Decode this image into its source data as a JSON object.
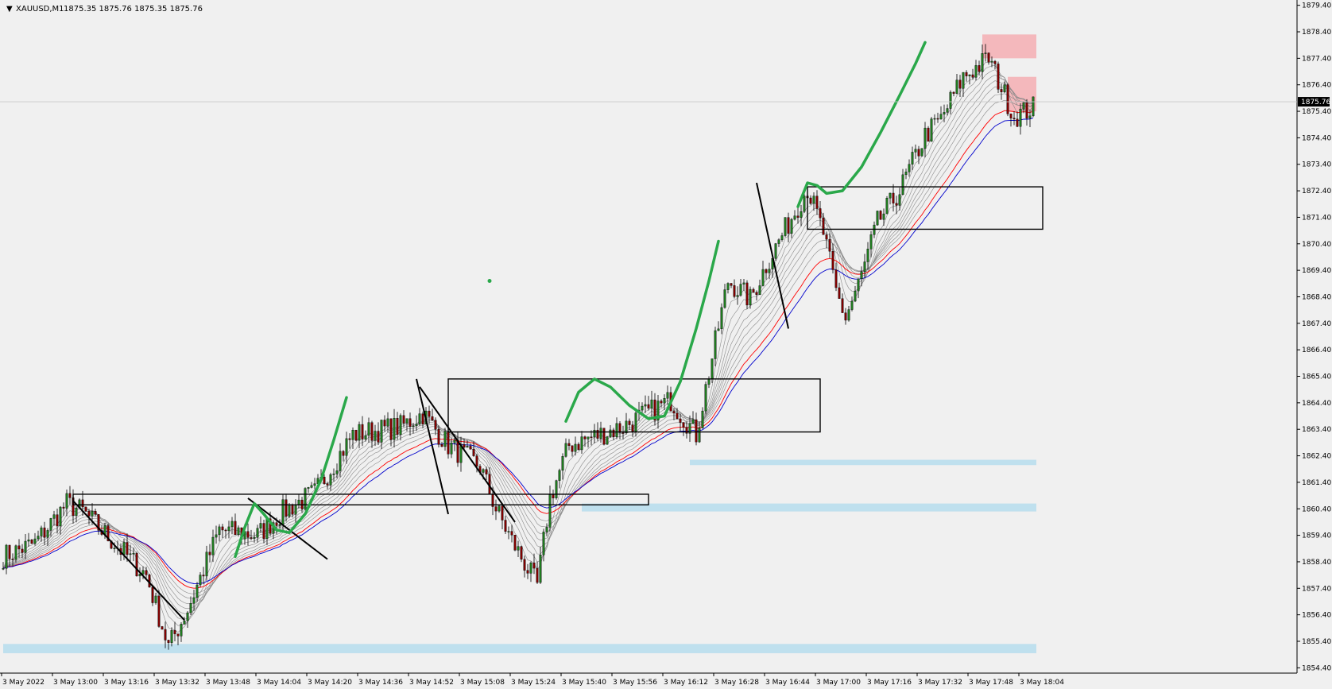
{
  "header": {
    "symbol": "XAUUSD,M1",
    "ohlc": "1875.35 1875.76 1875.35 1875.76"
  },
  "chart_data": {
    "type": "candlestick",
    "symbol": "XAUUSD,M1",
    "ylim": [
      1854.2,
      1879.6
    ],
    "y_ticks": [
      "1879.40",
      "1878.40",
      "1877.40",
      "1876.40",
      "1875.40",
      "1874.40",
      "1873.40",
      "1872.40",
      "1871.40",
      "1870.40",
      "1869.40",
      "1868.40",
      "1867.40",
      "1866.40",
      "1865.40",
      "1864.40",
      "1863.40",
      "1862.40",
      "1861.40",
      "1860.40",
      "1859.40",
      "1858.40",
      "1857.40",
      "1856.40",
      "1855.40",
      "1854.40"
    ],
    "y_tick_values": [
      1879.4,
      1878.4,
      1877.4,
      1876.4,
      1875.4,
      1874.4,
      1873.4,
      1872.4,
      1871.4,
      1870.4,
      1869.4,
      1868.4,
      1867.4,
      1866.4,
      1865.4,
      1864.4,
      1863.4,
      1862.4,
      1861.4,
      1860.4,
      1859.4,
      1858.4,
      1857.4,
      1856.4,
      1855.4,
      1854.4
    ],
    "x_ticks": [
      "3 May 2022",
      "3 May 13:00",
      "3 May 13:16",
      "3 May 13:32",
      "3 May 13:48",
      "3 May 14:04",
      "3 May 14:20",
      "3 May 14:36",
      "3 May 14:52",
      "3 May 15:08",
      "3 May 15:24",
      "3 May 15:40",
      "3 May 15:56",
      "3 May 16:12",
      "3 May 16:28",
      "3 May 16:44",
      "3 May 17:00",
      "3 May 17:16",
      "3 May 17:32",
      "3 May 17:48",
      "3 May 18:04"
    ],
    "current_price": "1875.76",
    "bar_count": 325,
    "price_path": [
      [
        0,
        1858.6
      ],
      [
        10,
        1859.1
      ],
      [
        20,
        1860.6
      ],
      [
        25,
        1860.3
      ],
      [
        45,
        1857.9
      ],
      [
        52,
        1855.2
      ],
      [
        58,
        1856.6
      ],
      [
        68,
        1859.6
      ],
      [
        80,
        1859.4
      ],
      [
        88,
        1860.3
      ],
      [
        98,
        1861.0
      ],
      [
        110,
        1863.2
      ],
      [
        125,
        1863.5
      ],
      [
        132,
        1864.0
      ],
      [
        140,
        1862.8
      ],
      [
        150,
        1862.0
      ],
      [
        155,
        1860.4
      ],
      [
        160,
        1859.2
      ],
      [
        168,
        1857.5
      ],
      [
        172,
        1860.8
      ],
      [
        178,
        1862.8
      ],
      [
        185,
        1863.1
      ],
      [
        195,
        1863.5
      ],
      [
        210,
        1864.5
      ],
      [
        218,
        1863.2
      ],
      [
        228,
        1869.0
      ],
      [
        235,
        1868.3
      ],
      [
        240,
        1869.6
      ],
      [
        248,
        1871.4
      ],
      [
        253,
        1872.5
      ],
      [
        258,
        1870.8
      ],
      [
        262,
        1868.6
      ],
      [
        265,
        1867.6
      ],
      [
        270,
        1869.2
      ],
      [
        275,
        1871.2
      ],
      [
        282,
        1872.4
      ],
      [
        290,
        1874.5
      ],
      [
        295,
        1875.1
      ],
      [
        302,
        1876.7
      ],
      [
        310,
        1877.4
      ],
      [
        318,
        1875.2
      ],
      [
        325,
        1875.6
      ]
    ],
    "overlays": {
      "rectangles": [
        {
          "x0": 22,
          "x1": 203,
          "y0": 1860.55,
          "y1": 1860.95,
          "style": "outline"
        },
        {
          "x0": 140,
          "x1": 257,
          "y0": 1863.3,
          "y1": 1865.3,
          "style": "outline"
        },
        {
          "x0": 253,
          "x1": 327,
          "y0": 1870.95,
          "y1": 1872.55,
          "style": "outline"
        },
        {
          "x0": 308,
          "x1": 325,
          "y0": 1877.4,
          "y1": 1878.3,
          "style": "resistance"
        },
        {
          "x0": 316,
          "x1": 325,
          "y0": 1875.4,
          "y1": 1876.7,
          "style": "resistance"
        }
      ],
      "support_bands": [
        {
          "x0": 0,
          "x1": 325,
          "y0": 1854.95,
          "y1": 1855.3
        },
        {
          "x0": 182,
          "x1": 325,
          "y0": 1860.3,
          "y1": 1860.6
        },
        {
          "x0": 216,
          "x1": 325,
          "y0": 1862.05,
          "y1": 1862.25
        }
      ]
    },
    "colors": {
      "background": "#f0f0f0",
      "bull": "#1f7a1f",
      "bear": "#800000",
      "ma_fast": "#8a8a8a",
      "ma_red": "#ff0000",
      "ma_blue": "#0000cc",
      "support_band": "#bfe0ee",
      "resistance_zone": "#f4b8bc",
      "annotation_green": "#2aa84a"
    }
  }
}
